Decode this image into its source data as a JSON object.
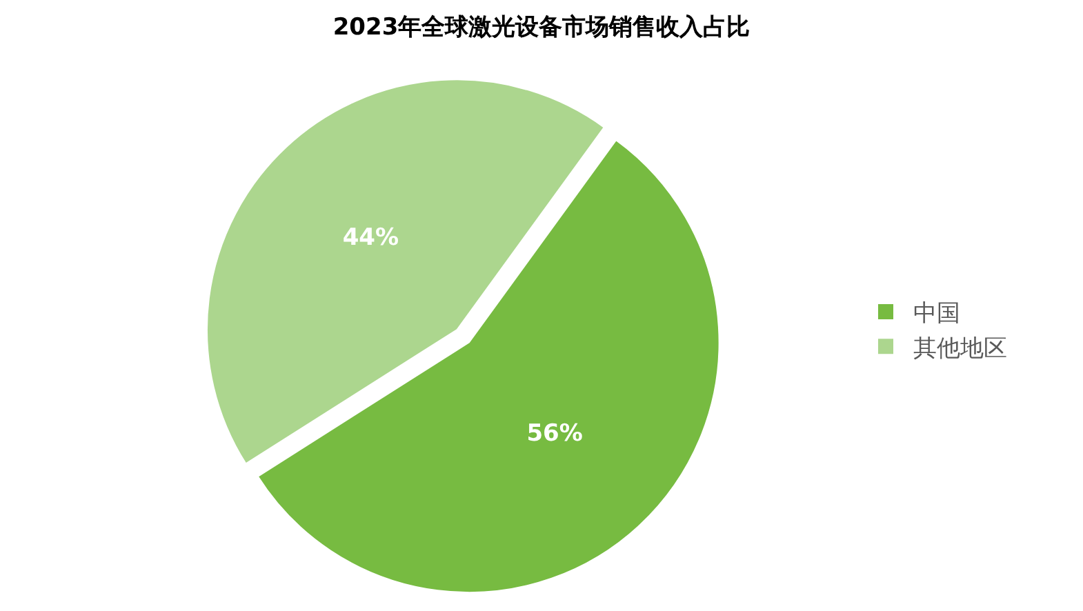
{
  "chart_data": {
    "type": "pie",
    "title": "2023年全球激光设备市场销售收入占比",
    "categories": [
      "中国",
      "其他地区"
    ],
    "values": [
      56,
      44
    ],
    "colors": [
      "#77bb41",
      "#acd68e"
    ],
    "value_labels": [
      "56%",
      "44%"
    ],
    "legend": "right"
  }
}
